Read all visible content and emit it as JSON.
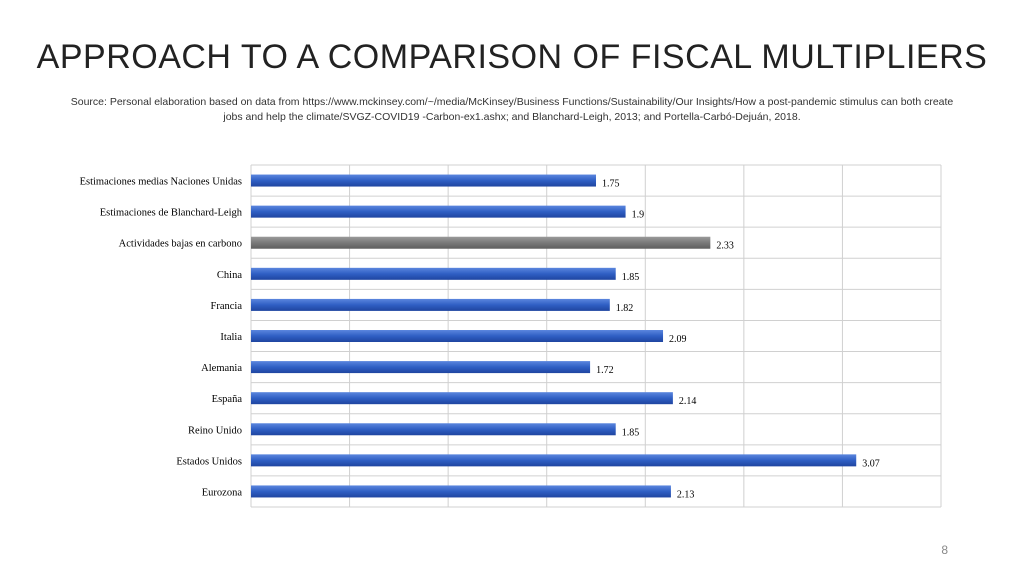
{
  "slide": {
    "title": "APPROACH TO A COMPARISON OF FISCAL MULTIPLIERS",
    "source": "Source: Personal elaboration based on data from https://www.mckinsey.com/~/media/McKinsey/Business Functions/Sustainability/Our Insights/How a post-pandemic stimulus can both create jobs and help the climate/SVGZ-COVID19 -Carbon-ex1.ashx; and Blanchard-Leigh, 2013; and Portella-Carbó-Dejuán, 2018.",
    "page_number": "8"
  },
  "chart_data": {
    "type": "bar",
    "orientation": "horizontal",
    "categories": [
      "Estimaciones medias Naciones Unidas",
      "Estimaciones de Blanchard-Leigh",
      "Actividades bajas en carbono",
      "China",
      "Francia",
      "Italia",
      "Alemania",
      "España",
      "Reino Unido",
      "Estados Unidos",
      "Eurozona"
    ],
    "values": [
      1.75,
      1.9,
      2.33,
      1.85,
      1.82,
      2.09,
      1.72,
      2.14,
      1.85,
      3.07,
      2.13
    ],
    "value_labels": [
      "1.75",
      "1.9",
      "2.33",
      "1.85",
      "1.82",
      "2.09",
      "1.72",
      "2.14",
      "1.85",
      "3.07",
      "2.13"
    ],
    "highlight_index": 2,
    "xlim": [
      0,
      3.5
    ],
    "grid": true,
    "colors": {
      "bar": "#2f5fc4",
      "highlight": "#7a7a7a",
      "grid": "#d0d0d0"
    }
  }
}
